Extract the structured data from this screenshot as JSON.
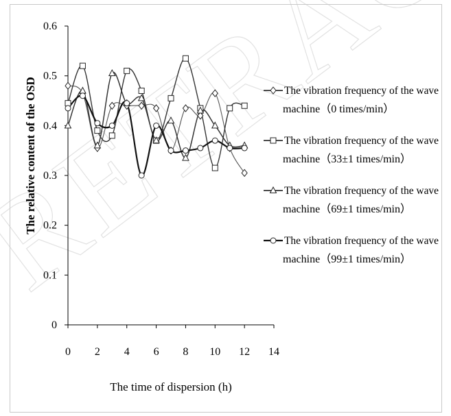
{
  "watermark": "RETRACTED ARTICLE",
  "chart_data": {
    "type": "line",
    "xlabel": "The time of dispersion (h)",
    "ylabel": "The relative content of the OSD",
    "xlim": [
      0,
      14
    ],
    "ylim": [
      0,
      0.6
    ],
    "x_ticks": [
      "0",
      "2",
      "4",
      "6",
      "8",
      "10",
      "12",
      "14"
    ],
    "y_ticks": [
      "0",
      "0.1",
      "0.2",
      "0.3",
      "0.4",
      "0.5",
      "0.6"
    ],
    "x": [
      0,
      1,
      2,
      3,
      4,
      5,
      6,
      7,
      8,
      9,
      10,
      11,
      12
    ],
    "legend_position": "right",
    "series": [
      {
        "name": "The vibration frequency of the wave machine（0 times/min）",
        "line1": "The vibration frequency of the wave",
        "line2": "machine（0 times/min）",
        "marker": "diamond",
        "values": [
          0.48,
          0.465,
          0.355,
          0.44,
          0.44,
          0.44,
          0.435,
          0.35,
          0.435,
          0.42,
          0.465,
          0.355,
          0.305
        ]
      },
      {
        "name": "The vibration frequency of the wave machine（33±1 times/min）",
        "line1": "The vibration frequency of the wave",
        "line2": "machine（33±1 times/min）",
        "marker": "square",
        "values": [
          0.445,
          0.52,
          0.39,
          0.38,
          0.51,
          0.47,
          0.37,
          0.455,
          0.535,
          0.435,
          0.315,
          0.435,
          0.44
        ]
      },
      {
        "name": "The vibration frequency of the wave machine（69±1 times/min）",
        "line1": "The vibration frequency of the wave",
        "line2": "machine（69±1 times/min）",
        "marker": "triangle",
        "values": [
          0.4,
          0.47,
          0.36,
          0.505,
          0.445,
          0.455,
          0.37,
          0.41,
          0.335,
          0.43,
          0.4,
          0.36,
          0.36
        ]
      },
      {
        "name": "The vibration frequency of the wave machine（99±1 times/min）",
        "line1": "The vibration frequency of the wave",
        "line2": "machine（99±1 times/min）",
        "marker": "circle",
        "values": [
          0.435,
          0.46,
          0.405,
          0.4,
          0.445,
          0.3,
          0.4,
          0.35,
          0.35,
          0.355,
          0.37,
          0.355,
          0.355
        ]
      }
    ]
  }
}
